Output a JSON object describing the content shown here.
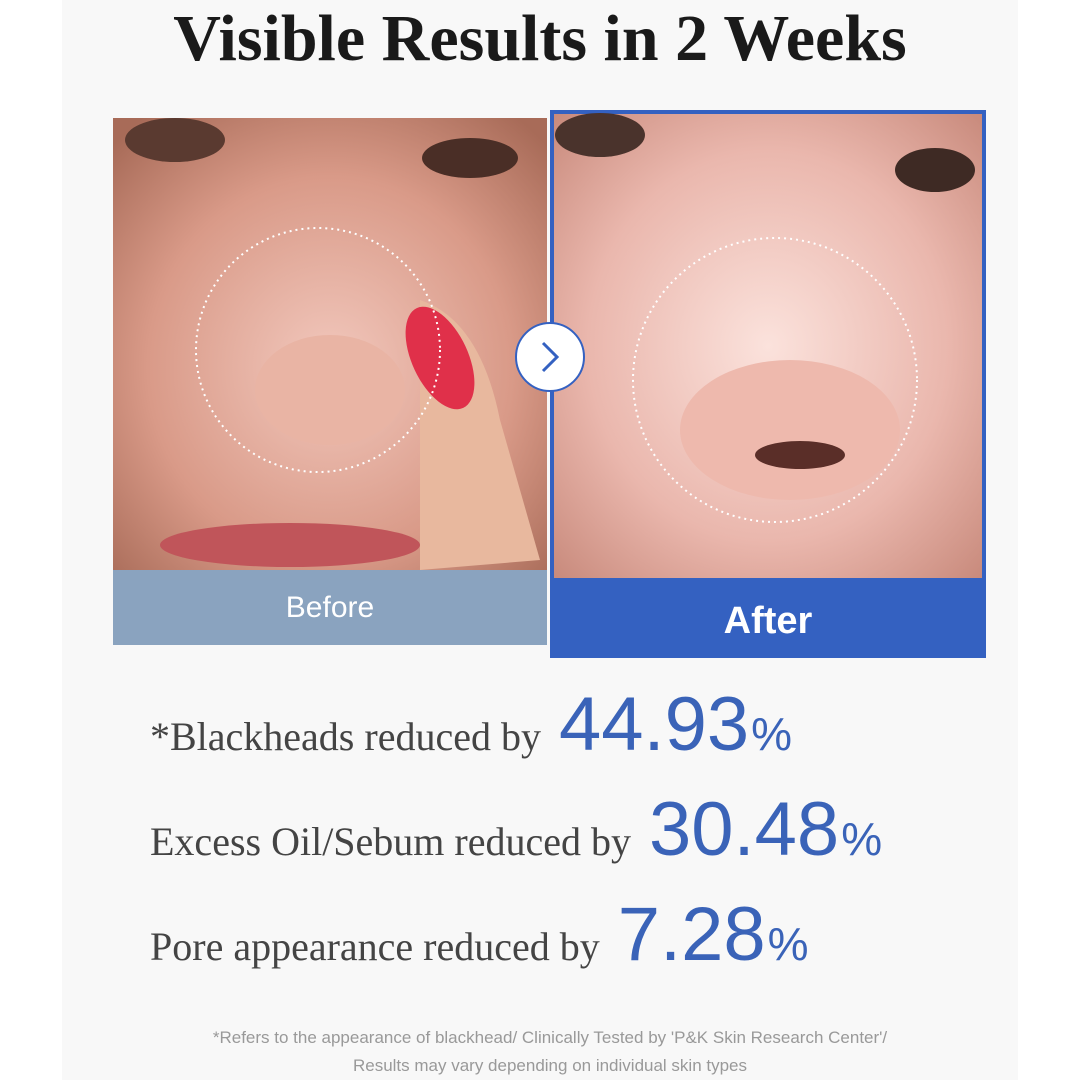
{
  "header": {
    "title": "Visible Results in 2 Weeks"
  },
  "comparison": {
    "before_label": "Before",
    "after_label": "After"
  },
  "stats": [
    {
      "label": "*Blackheads reduced by",
      "value": "44.93",
      "unit": "%"
    },
    {
      "label": "Excess Oil/Sebum reduced by",
      "value": "30.48",
      "unit": "%"
    },
    {
      "label": "Pore appearance reduced by",
      "value": "7.28",
      "unit": "%"
    }
  ],
  "footnote": [
    "*Refers to the appearance of blackhead/ Clinically Tested by 'P&K Skin Research Center'/",
    "Results may vary depending on individual skin types"
  ]
}
